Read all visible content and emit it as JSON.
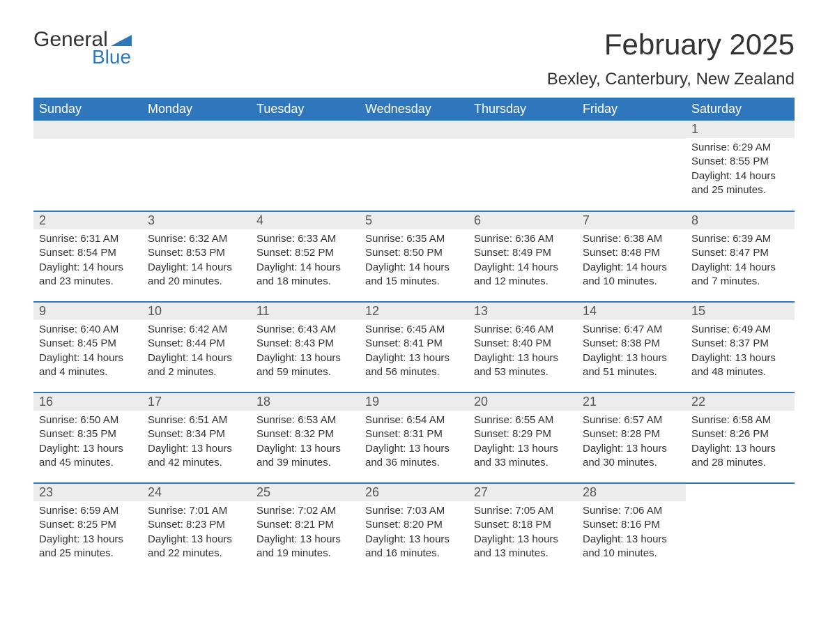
{
  "logo": {
    "word1": "General",
    "word2": "Blue"
  },
  "title": "February 2025",
  "location": "Bexley, Canterbury, New Zealand",
  "colors": {
    "header_bg": "#2f77bc",
    "header_text": "#ffffff",
    "daynum_bg": "#ececec",
    "text": "#333333",
    "background": "#ffffff"
  },
  "weekdays": [
    "Sunday",
    "Monday",
    "Tuesday",
    "Wednesday",
    "Thursday",
    "Friday",
    "Saturday"
  ],
  "weeks": [
    [
      null,
      null,
      null,
      null,
      null,
      null,
      {
        "n": "1",
        "sunrise": "Sunrise: 6:29 AM",
        "sunset": "Sunset: 8:55 PM",
        "day": "Daylight: 14 hours and 25 minutes."
      }
    ],
    [
      {
        "n": "2",
        "sunrise": "Sunrise: 6:31 AM",
        "sunset": "Sunset: 8:54 PM",
        "day": "Daylight: 14 hours and 23 minutes."
      },
      {
        "n": "3",
        "sunrise": "Sunrise: 6:32 AM",
        "sunset": "Sunset: 8:53 PM",
        "day": "Daylight: 14 hours and 20 minutes."
      },
      {
        "n": "4",
        "sunrise": "Sunrise: 6:33 AM",
        "sunset": "Sunset: 8:52 PM",
        "day": "Daylight: 14 hours and 18 minutes."
      },
      {
        "n": "5",
        "sunrise": "Sunrise: 6:35 AM",
        "sunset": "Sunset: 8:50 PM",
        "day": "Daylight: 14 hours and 15 minutes."
      },
      {
        "n": "6",
        "sunrise": "Sunrise: 6:36 AM",
        "sunset": "Sunset: 8:49 PM",
        "day": "Daylight: 14 hours and 12 minutes."
      },
      {
        "n": "7",
        "sunrise": "Sunrise: 6:38 AM",
        "sunset": "Sunset: 8:48 PM",
        "day": "Daylight: 14 hours and 10 minutes."
      },
      {
        "n": "8",
        "sunrise": "Sunrise: 6:39 AM",
        "sunset": "Sunset: 8:47 PM",
        "day": "Daylight: 14 hours and 7 minutes."
      }
    ],
    [
      {
        "n": "9",
        "sunrise": "Sunrise: 6:40 AM",
        "sunset": "Sunset: 8:45 PM",
        "day": "Daylight: 14 hours and 4 minutes."
      },
      {
        "n": "10",
        "sunrise": "Sunrise: 6:42 AM",
        "sunset": "Sunset: 8:44 PM",
        "day": "Daylight: 14 hours and 2 minutes."
      },
      {
        "n": "11",
        "sunrise": "Sunrise: 6:43 AM",
        "sunset": "Sunset: 8:43 PM",
        "day": "Daylight: 13 hours and 59 minutes."
      },
      {
        "n": "12",
        "sunrise": "Sunrise: 6:45 AM",
        "sunset": "Sunset: 8:41 PM",
        "day": "Daylight: 13 hours and 56 minutes."
      },
      {
        "n": "13",
        "sunrise": "Sunrise: 6:46 AM",
        "sunset": "Sunset: 8:40 PM",
        "day": "Daylight: 13 hours and 53 minutes."
      },
      {
        "n": "14",
        "sunrise": "Sunrise: 6:47 AM",
        "sunset": "Sunset: 8:38 PM",
        "day": "Daylight: 13 hours and 51 minutes."
      },
      {
        "n": "15",
        "sunrise": "Sunrise: 6:49 AM",
        "sunset": "Sunset: 8:37 PM",
        "day": "Daylight: 13 hours and 48 minutes."
      }
    ],
    [
      {
        "n": "16",
        "sunrise": "Sunrise: 6:50 AM",
        "sunset": "Sunset: 8:35 PM",
        "day": "Daylight: 13 hours and 45 minutes."
      },
      {
        "n": "17",
        "sunrise": "Sunrise: 6:51 AM",
        "sunset": "Sunset: 8:34 PM",
        "day": "Daylight: 13 hours and 42 minutes."
      },
      {
        "n": "18",
        "sunrise": "Sunrise: 6:53 AM",
        "sunset": "Sunset: 8:32 PM",
        "day": "Daylight: 13 hours and 39 minutes."
      },
      {
        "n": "19",
        "sunrise": "Sunrise: 6:54 AM",
        "sunset": "Sunset: 8:31 PM",
        "day": "Daylight: 13 hours and 36 minutes."
      },
      {
        "n": "20",
        "sunrise": "Sunrise: 6:55 AM",
        "sunset": "Sunset: 8:29 PM",
        "day": "Daylight: 13 hours and 33 minutes."
      },
      {
        "n": "21",
        "sunrise": "Sunrise: 6:57 AM",
        "sunset": "Sunset: 8:28 PM",
        "day": "Daylight: 13 hours and 30 minutes."
      },
      {
        "n": "22",
        "sunrise": "Sunrise: 6:58 AM",
        "sunset": "Sunset: 8:26 PM",
        "day": "Daylight: 13 hours and 28 minutes."
      }
    ],
    [
      {
        "n": "23",
        "sunrise": "Sunrise: 6:59 AM",
        "sunset": "Sunset: 8:25 PM",
        "day": "Daylight: 13 hours and 25 minutes."
      },
      {
        "n": "24",
        "sunrise": "Sunrise: 7:01 AM",
        "sunset": "Sunset: 8:23 PM",
        "day": "Daylight: 13 hours and 22 minutes."
      },
      {
        "n": "25",
        "sunrise": "Sunrise: 7:02 AM",
        "sunset": "Sunset: 8:21 PM",
        "day": "Daylight: 13 hours and 19 minutes."
      },
      {
        "n": "26",
        "sunrise": "Sunrise: 7:03 AM",
        "sunset": "Sunset: 8:20 PM",
        "day": "Daylight: 13 hours and 16 minutes."
      },
      {
        "n": "27",
        "sunrise": "Sunrise: 7:05 AM",
        "sunset": "Sunset: 8:18 PM",
        "day": "Daylight: 13 hours and 13 minutes."
      },
      {
        "n": "28",
        "sunrise": "Sunrise: 7:06 AM",
        "sunset": "Sunset: 8:16 PM",
        "day": "Daylight: 13 hours and 10 minutes."
      },
      null
    ]
  ]
}
